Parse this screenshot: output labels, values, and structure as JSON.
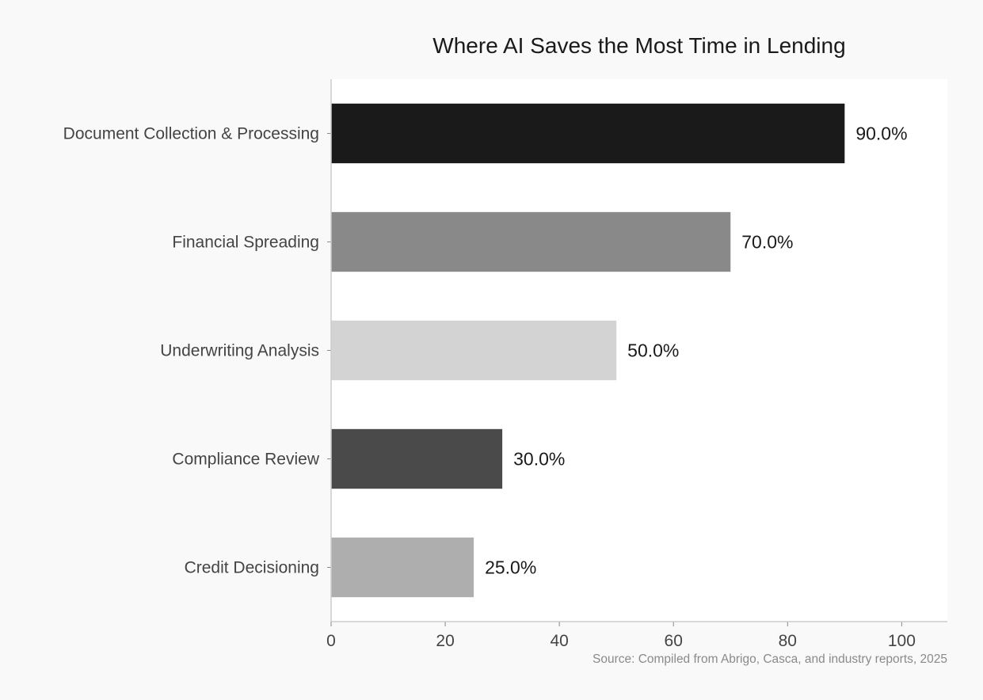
{
  "chart_data": {
    "type": "bar",
    "orientation": "horizontal",
    "title": "Where AI Saves the Most Time in Lending",
    "xlabel": "",
    "ylabel": "",
    "categories": [
      "Document Collection & Processing",
      "Financial Spreading",
      "Underwriting Analysis",
      "Compliance Review",
      "Credit Decisioning"
    ],
    "values": [
      90,
      70,
      50,
      30,
      25
    ],
    "value_labels": [
      "90.0%",
      "70.0%",
      "50.0%",
      "30.0%",
      "25.0%"
    ],
    "bar_colors": [
      "#1a1a1a",
      "#898989",
      "#d3d3d3",
      "#4a4a4a",
      "#aeaeae"
    ],
    "xlim": [
      0,
      108
    ],
    "xticks": [
      0,
      20,
      40,
      60,
      80,
      100
    ],
    "grid": false,
    "legend": "none",
    "source": "Source: Compiled from Abrigo, Casca, and industry reports, 2025"
  }
}
